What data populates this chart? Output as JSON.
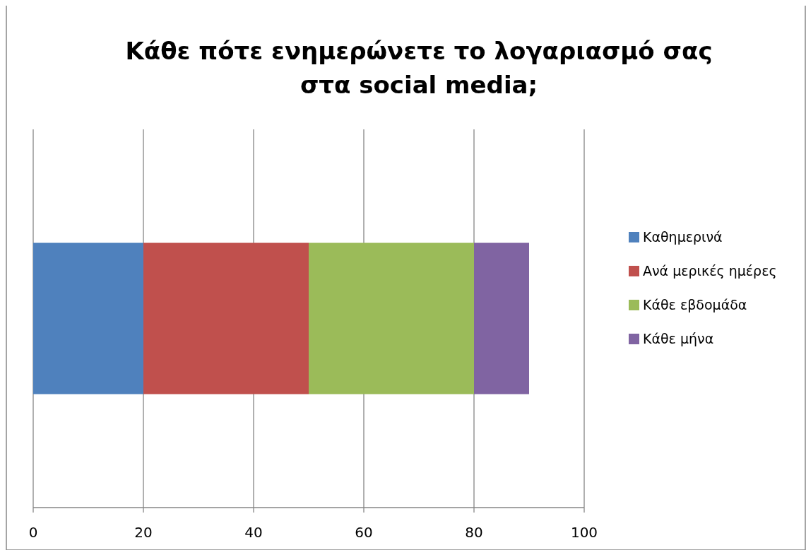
{
  "chart_data": {
    "type": "bar",
    "orientation": "horizontal",
    "stacked": true,
    "title": "Κάθε πότε ενημερώνετε το λογαριασμό σας στα social media;",
    "categories": [
      null
    ],
    "series": [
      {
        "name": "Καθημερινά",
        "color": "#4f81bd",
        "values": [
          20
        ]
      },
      {
        "name": "Ανά μερικές ημέρες",
        "color": "#c0504d",
        "values": [
          30
        ]
      },
      {
        "name": "Κάθε εβδομάδα",
        "color": "#9bbb59",
        "values": [
          30
        ]
      },
      {
        "name": "Κάθε μήνα",
        "color": "#8064a2",
        "values": [
          10
        ]
      }
    ],
    "xlim": [
      0,
      100
    ],
    "xticks": [
      0,
      20,
      40,
      60,
      80,
      100
    ],
    "grid": "x",
    "legend": "right"
  }
}
